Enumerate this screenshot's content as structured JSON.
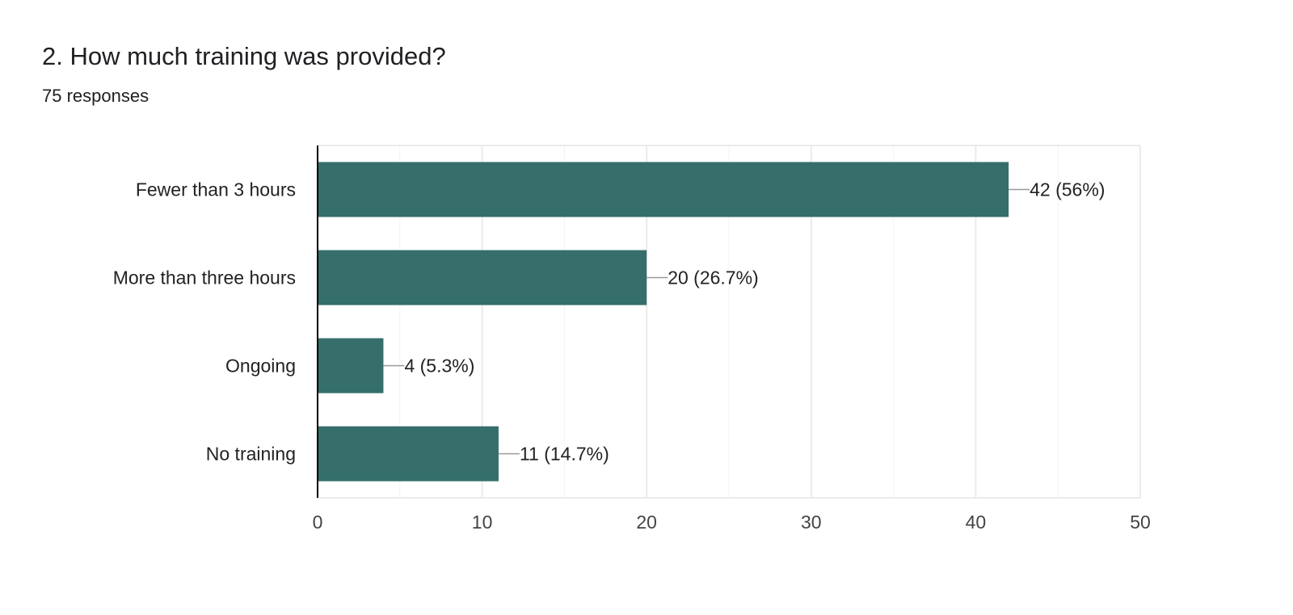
{
  "question": {
    "title": "2. How much training was provided?",
    "responses": "75 responses"
  },
  "colors": {
    "bar": "#356e6b",
    "grid": "#ebebeb",
    "axis": "#000000",
    "leader": "#999999",
    "text": "#202124",
    "tick_text": "#444444"
  },
  "chart_data": {
    "type": "bar",
    "orientation": "horizontal",
    "categories": [
      "Fewer than 3 hours",
      "More than three hours",
      "Ongoing",
      "No training"
    ],
    "values": [
      42,
      20,
      4,
      11
    ],
    "data_labels": [
      "42 (56%)",
      "20 (26.7%)",
      "4 (5.3%)",
      "11 (14.7%)"
    ],
    "x_ticks": [
      0,
      10,
      20,
      30,
      40,
      50
    ],
    "xlim": [
      0,
      50
    ],
    "grid": true,
    "legend": "none"
  }
}
